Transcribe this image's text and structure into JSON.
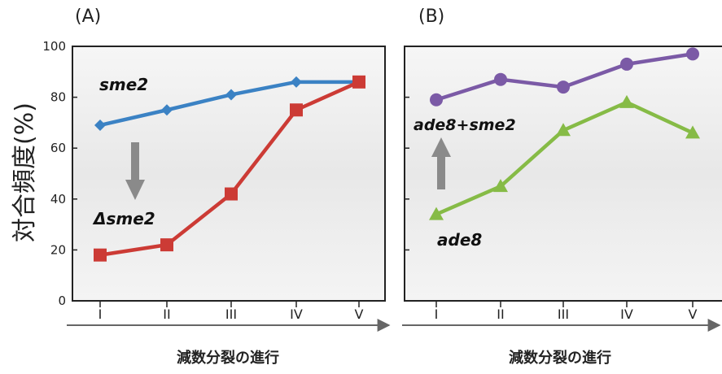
{
  "ylabel": "対合頻度(%)",
  "xlabel": "減数分裂の進行",
  "chart_data": [
    {
      "type": "line",
      "panel_label": "(A)",
      "categories": [
        "I",
        "II",
        "III",
        "IV",
        "V"
      ],
      "y_ticks": [
        "0",
        "20",
        "40",
        "60",
        "80",
        "100"
      ],
      "ylim": [
        0,
        100
      ],
      "ylabel": "対合頻度(%)",
      "xlabel": "減数分裂の進行",
      "grid": false,
      "series": [
        {
          "name": "sme2",
          "marker": "diamond",
          "color": "#3b82c4",
          "values": [
            69,
            75,
            81,
            86,
            86
          ]
        },
        {
          "name": "Δsme2",
          "marker": "square",
          "color": "#cc3b35",
          "values": [
            18,
            22,
            42,
            75,
            86
          ]
        }
      ],
      "annotation": "downward arrow from sme2 to Δsme2"
    },
    {
      "type": "line",
      "panel_label": "(B)",
      "categories": [
        "I",
        "II",
        "III",
        "IV",
        "V"
      ],
      "ylim": [
        0,
        100
      ],
      "xlabel": "減数分裂の進行",
      "grid": false,
      "series": [
        {
          "name": "ade8+sme2",
          "marker": "circle",
          "color": "#7b5aa6",
          "values": [
            79,
            87,
            84,
            93,
            97
          ]
        },
        {
          "name": "ade8",
          "marker": "triangle",
          "color": "#86bb46",
          "values": [
            34,
            45,
            67,
            78,
            66
          ]
        }
      ],
      "annotation": "upward arrow from ade8 to ade8+sme2"
    }
  ]
}
